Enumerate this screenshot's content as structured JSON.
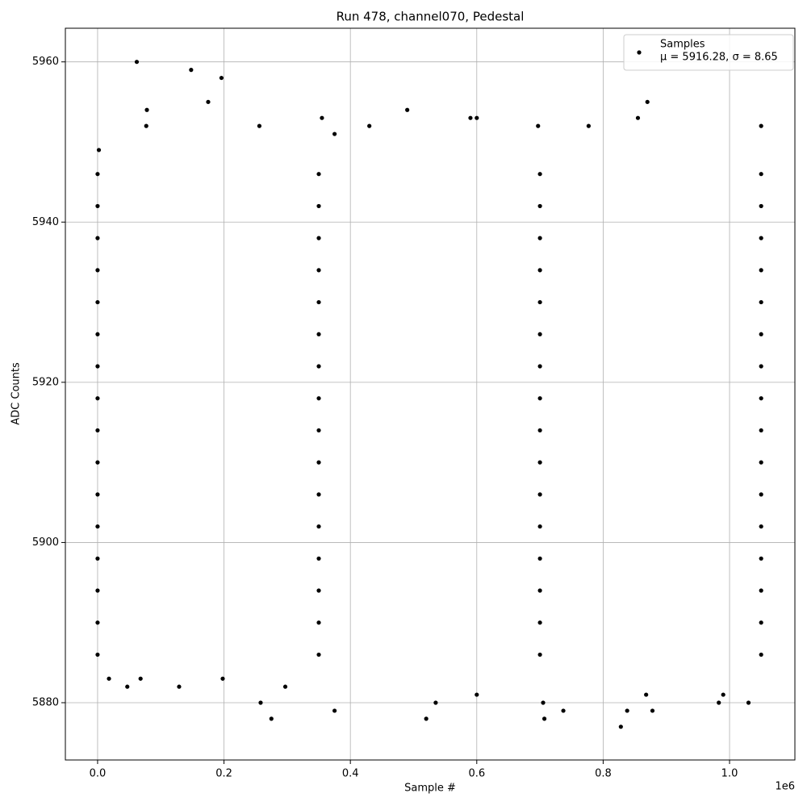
{
  "chart_data": {
    "type": "scatter",
    "title": "Run 478, channel070, Pedestal",
    "x_label": "Sample #",
    "y_label": "ADC Counts",
    "x_offset_label": "1e6",
    "xlim": [
      -51000,
      1103400
    ],
    "ylim": [
      5872.85,
      5964.2
    ],
    "xticks": [
      {
        "value": 0,
        "label": "0.0"
      },
      {
        "value": 200000,
        "label": "0.2"
      },
      {
        "value": 400000,
        "label": "0.4"
      },
      {
        "value": 600000,
        "label": "0.6"
      },
      {
        "value": 800000,
        "label": "0.8"
      },
      {
        "value": 1000000,
        "label": "1.0"
      }
    ],
    "yticks": [
      5880,
      5900,
      5920,
      5940,
      5960
    ],
    "grid": true,
    "legend": "upper right",
    "legend_note": "μ = 5916.28, σ = 8.65",
    "series": [
      {
        "name": "Samples",
        "color": "#000000",
        "x": [
          2000,
          62000,
          148000,
          196000,
          175000,
          78000,
          77000,
          256000,
          355000,
          490000,
          590000,
          600000,
          697000,
          777000,
          870000,
          855000,
          1050000,
          430000,
          375000,
          18000,
          47000,
          68000,
          129000,
          198000,
          258000,
          275000,
          297000,
          375000,
          520000,
          535000,
          600000,
          705000,
          707000,
          737000,
          828000,
          838000,
          868000,
          878000,
          983000,
          990000,
          1030000,
          0,
          350000,
          700000,
          1050000,
          0,
          350000,
          700000,
          1050000,
          0,
          350000,
          700000,
          1050000,
          0,
          350000,
          700000,
          1050000,
          0,
          350000,
          700000,
          1050000,
          0,
          350000,
          700000,
          1050000,
          0,
          350000,
          700000,
          1050000,
          0,
          350000,
          700000,
          1050000,
          0,
          350000,
          700000,
          1050000,
          0,
          350000,
          700000,
          1050000,
          0,
          350000,
          700000,
          1050000,
          0,
          350000,
          700000,
          1050000,
          0,
          350000,
          700000,
          1050000,
          0,
          350000,
          700000,
          1050000,
          0,
          350000,
          700000,
          1050000,
          0,
          350000,
          700000,
          1050000
        ],
        "y": [
          5949,
          5960,
          5959,
          5958,
          5955,
          5954,
          5952,
          5952,
          5953,
          5954,
          5953,
          5953,
          5952,
          5952,
          5955,
          5953,
          5952,
          5952,
          5951,
          5883,
          5882,
          5883,
          5882,
          5883,
          5880,
          5878,
          5882,
          5879,
          5878,
          5880,
          5881,
          5880,
          5878,
          5879,
          5877,
          5879,
          5881,
          5879,
          5880,
          5881,
          5880,
          5886,
          5886,
          5886,
          5886,
          5890,
          5890,
          5890,
          5890,
          5894,
          5894,
          5894,
          5894,
          5898,
          5898,
          5898,
          5898,
          5902,
          5902,
          5902,
          5902,
          5906,
          5906,
          5906,
          5906,
          5910,
          5910,
          5910,
          5910,
          5914,
          5914,
          5914,
          5914,
          5918,
          5918,
          5918,
          5918,
          5922,
          5922,
          5922,
          5922,
          5926,
          5926,
          5926,
          5926,
          5930,
          5930,
          5930,
          5930,
          5934,
          5934,
          5934,
          5934,
          5938,
          5938,
          5938,
          5938,
          5942,
          5942,
          5942,
          5942,
          5946,
          5946,
          5946,
          5946
        ]
      }
    ]
  }
}
